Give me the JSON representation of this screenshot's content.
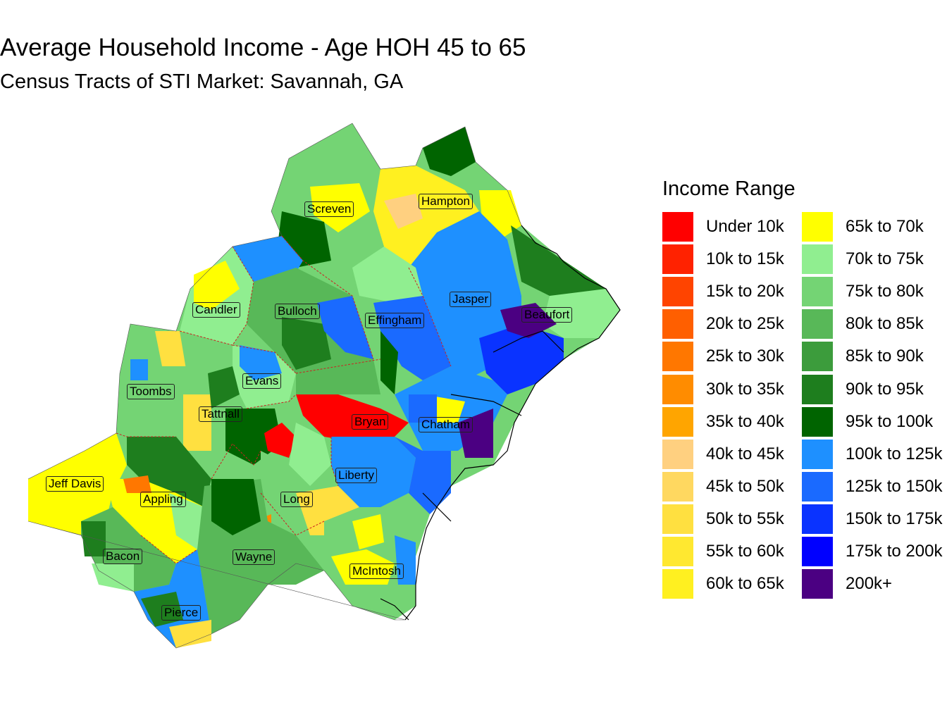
{
  "title": "Average Household Income - Age HOH 45 to 65",
  "subtitle": "Census Tracts of STI Market: Savannah, GA",
  "legend": {
    "title": "Income Range",
    "items": [
      {
        "label": "Under 10k",
        "color": "#ff0000"
      },
      {
        "label": "10k to 15k",
        "color": "#ff2200"
      },
      {
        "label": "15k to 20k",
        "color": "#ff4400"
      },
      {
        "label": "20k to 25k",
        "color": "#ff5f00"
      },
      {
        "label": "25k to 30k",
        "color": "#ff7700"
      },
      {
        "label": "30k to 35k",
        "color": "#ff8c00"
      },
      {
        "label": "35k to 40k",
        "color": "#ffa500"
      },
      {
        "label": "40k to 45k",
        "color": "#ffd080"
      },
      {
        "label": "45k to 50k",
        "color": "#ffd860"
      },
      {
        "label": "50k to 55k",
        "color": "#ffe040"
      },
      {
        "label": "55k to 60k",
        "color": "#ffe830"
      },
      {
        "label": "60k to 65k",
        "color": "#fff020"
      },
      {
        "label": "65k to 70k",
        "color": "#ffff00"
      },
      {
        "label": "70k to 75k",
        "color": "#90ee90"
      },
      {
        "label": "75k to 80k",
        "color": "#74d474"
      },
      {
        "label": "80k to 85k",
        "color": "#58b858"
      },
      {
        "label": "85k to 90k",
        "color": "#3c9c3c"
      },
      {
        "label": "90k to 95k",
        "color": "#1e7e1e"
      },
      {
        "label": "95k to 100k",
        "color": "#006400"
      },
      {
        "label": "100k to 125k",
        "color": "#1e90ff"
      },
      {
        "label": "125k to 150k",
        "color": "#1a6aff"
      },
      {
        "label": "150k to 175k",
        "color": "#0a33ff"
      },
      {
        "label": "175k to 200k",
        "color": "#0000ff"
      },
      {
        "label": "200k+",
        "color": "#4b0082"
      }
    ]
  },
  "counties": [
    {
      "name": "Screven",
      "color_key": "75k to 80k"
    },
    {
      "name": "Hampton",
      "color_key": "60k to 65k"
    },
    {
      "name": "Candler",
      "color_key": "60k to 65k"
    },
    {
      "name": "Bulloch",
      "color_key": "100k to 125k"
    },
    {
      "name": "Effingham",
      "color_key": "125k to 150k"
    },
    {
      "name": "Jasper",
      "color_key": "100k to 125k"
    },
    {
      "name": "Beaufort",
      "color_key": "200k+"
    },
    {
      "name": "Evans",
      "color_key": "100k to 125k"
    },
    {
      "name": "Toombs",
      "color_key": "75k to 80k"
    },
    {
      "name": "Tattnall",
      "color_key": "55k to 60k"
    },
    {
      "name": "Bryan",
      "color_key": "Under 10k"
    },
    {
      "name": "Chatham",
      "color_key": "100k to 125k"
    },
    {
      "name": "Jeff Davis",
      "color_key": "60k to 65k"
    },
    {
      "name": "Appling",
      "color_key": "60k to 65k"
    },
    {
      "name": "Long",
      "color_key": "75k to 80k"
    },
    {
      "name": "Liberty",
      "color_key": "100k to 125k"
    },
    {
      "name": "Bacon",
      "color_key": "90k to 95k"
    },
    {
      "name": "Wayne",
      "color_key": "95k to 100k"
    },
    {
      "name": "McIntosh",
      "color_key": "60k to 65k"
    },
    {
      "name": "Pierce",
      "color_key": "100k to 125k"
    }
  ]
}
